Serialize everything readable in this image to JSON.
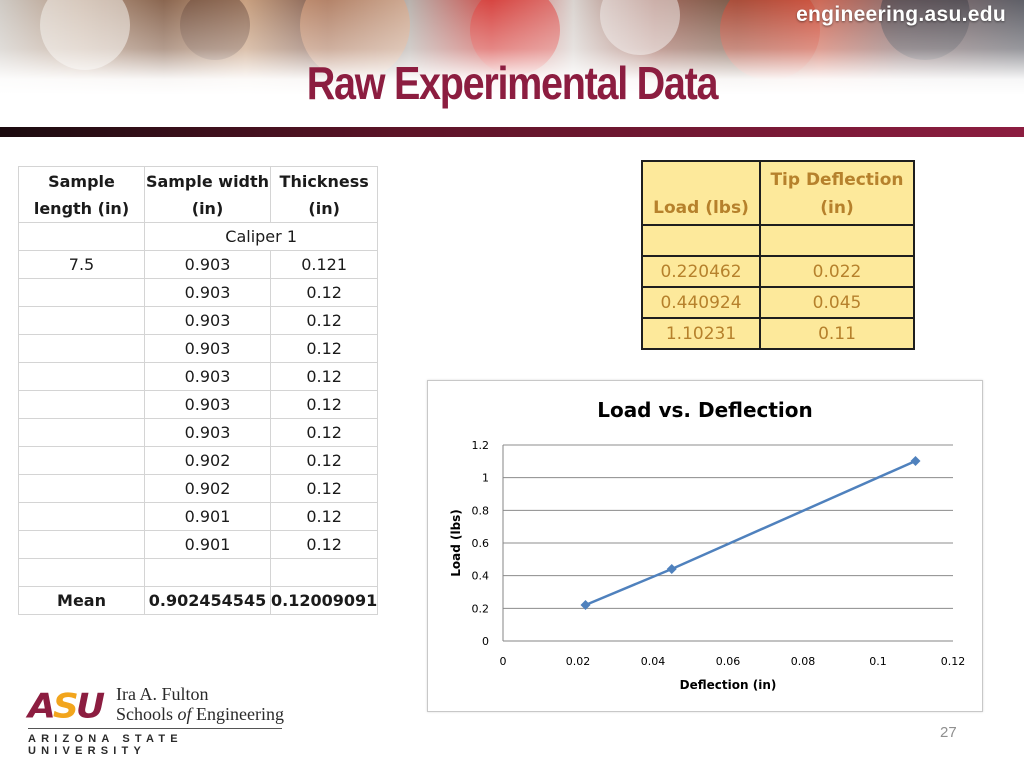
{
  "header": {
    "site_url": "engineering.asu.edu",
    "title": "Raw Experimental Data"
  },
  "colors": {
    "brand_maroon": "#8c1d40",
    "brand_gold": "#f2a51d",
    "table_highlight": "#fde99b",
    "table_text": "#b6812c",
    "series_line": "#4f81bd"
  },
  "left_table": {
    "headers": [
      [
        "Sample",
        "length (in)"
      ],
      [
        "Sample width",
        "(in)"
      ],
      [
        "Thickness",
        "(in)"
      ]
    ],
    "section_label": "Caliper 1",
    "rows": [
      [
        "7.5",
        "0.903",
        "0.121"
      ],
      [
        "",
        "0.903",
        "0.12"
      ],
      [
        "",
        "0.903",
        "0.12"
      ],
      [
        "",
        "0.903",
        "0.12"
      ],
      [
        "",
        "0.903",
        "0.12"
      ],
      [
        "",
        "0.903",
        "0.12"
      ],
      [
        "",
        "0.903",
        "0.12"
      ],
      [
        "",
        "0.902",
        "0.12"
      ],
      [
        "",
        "0.902",
        "0.12"
      ],
      [
        "",
        "0.901",
        "0.12"
      ],
      [
        "",
        "0.901",
        "0.12"
      ],
      [
        "",
        "",
        ""
      ]
    ],
    "mean_row": [
      "Mean",
      "0.902454545",
      "0.12009091"
    ]
  },
  "right_table": {
    "headers": [
      [
        "Load (lbs)"
      ],
      [
        "Tip Deflection",
        "(in)"
      ]
    ],
    "rows": [
      [
        "",
        ""
      ],
      [
        "0.220462",
        "0.022"
      ],
      [
        "0.440924",
        "0.045"
      ],
      [
        "1.10231",
        "0.11"
      ]
    ]
  },
  "chart_data": {
    "type": "scatter",
    "title": "Load vs. Deflection",
    "xlabel": "Deflection (in)",
    "ylabel": "Load (lbs)",
    "xlim": [
      0,
      0.12
    ],
    "ylim": [
      0,
      1.2
    ],
    "x_ticks": [
      "0",
      "0.02",
      "0.04",
      "0.06",
      "0.08",
      "0.1",
      "0.12"
    ],
    "y_ticks": [
      "0",
      "0.2",
      "0.4",
      "0.6",
      "0.8",
      "1",
      "1.2"
    ],
    "grid": "horizontal",
    "legend": "none",
    "marker": "diamond",
    "line": "straight",
    "series": [
      {
        "x": [
          0.022,
          0.045,
          0.11
        ],
        "y": [
          0.220462,
          0.440924,
          1.10231
        ]
      }
    ]
  },
  "footer": {
    "logo_mark": "ASU",
    "school_line1": "Ira A. Fulton",
    "school_line2_a": "Schools ",
    "school_line2_b": "of",
    "school_line2_c": " Engineering",
    "university": "ARIZONA STATE UNIVERSITY",
    "page_number": "27"
  }
}
